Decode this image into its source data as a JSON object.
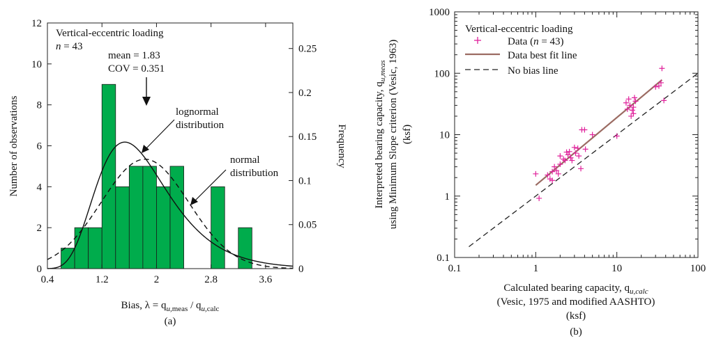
{
  "chart_data": [
    {
      "type": "bar",
      "panel_label": "(a)",
      "annotation": {
        "title": "Vertical-eccentric loading",
        "n_prefix": "n",
        "n_suffix": " = 43",
        "mean_text": "mean = 1.83",
        "cov_text": "COV = 0.351",
        "lognormal_line1": "lognormal",
        "lognormal_line2": "distribution",
        "normal_line1": "normal",
        "normal_line2": "distribution"
      },
      "xlabel": {
        "prefix": "Bias, λ = q",
        "sub1": "u,",
        "sub1b": "meas",
        "mid": " / q",
        "sub2": "u,",
        "sub2b": "calc"
      },
      "ylabel": "Number of observations",
      "ylabel_right": "Frequency",
      "x_range": [
        0.4,
        4.0
      ],
      "y_range": [
        0,
        12
      ],
      "y_right_range": [
        0,
        0.279
      ],
      "x_ticks": [
        0.4,
        1.2,
        2,
        2.8,
        3.6
      ],
      "x_tick_labels": [
        "0.4",
        "1.2",
        "2",
        "2.8",
        "3.6"
      ],
      "y_ticks": [
        0,
        2,
        4,
        6,
        8,
        10,
        12
      ],
      "y_right_ticks": [
        0,
        0.05,
        0.1,
        0.15,
        0.2,
        0.25
      ],
      "y_right_tick_labels": [
        "0",
        "0.05",
        "0.1",
        "0.15",
        "0.2",
        "0.25"
      ],
      "bin_width": 0.2,
      "bins": [
        {
          "x0": 0.6,
          "count": 1
        },
        {
          "x0": 0.8,
          "count": 2
        },
        {
          "x0": 1.0,
          "count": 2
        },
        {
          "x0": 1.2,
          "count": 9
        },
        {
          "x0": 1.4,
          "count": 4
        },
        {
          "x0": 1.6,
          "count": 5
        },
        {
          "x0": 1.8,
          "count": 5
        },
        {
          "x0": 2.0,
          "count": 4
        },
        {
          "x0": 2.2,
          "count": 5
        },
        {
          "x0": 2.8,
          "count": 4
        },
        {
          "x0": 3.2,
          "count": 2
        }
      ],
      "mean": 1.83,
      "cov": 0.351,
      "lognormal": {
        "mu": 0.5447,
        "sigma": 0.3413
      },
      "normal": {
        "mean": 1.83,
        "sd": 0.642
      },
      "bar_color": "#00ac4c",
      "n_total": 43
    },
    {
      "type": "scatter",
      "panel_label": "(b)",
      "scale": "log-log",
      "legend_title": "Vertical-eccentric loading",
      "legend": [
        {
          "text_prefix": "Data (",
          "italic": "n",
          "text_suffix": " = 43)",
          "kind": "marker",
          "color": "#e0219b"
        },
        {
          "text": "Data best fit line",
          "kind": "line",
          "color": "#9b6b62"
        },
        {
          "text": "No bias line",
          "kind": "dashed",
          "color": "#222222"
        }
      ],
      "xlabel": {
        "prefix": "Calculated bearing capacity, q",
        "sub": "u,calc"
      },
      "xlabel_line2": "(Vesic, 1975 and modified AASHTO)",
      "xlabel_line3": "(ksf)",
      "ylabel": {
        "line1_prefix": "Interpreted bearing capacity, q",
        "line1_sub": "u,meas",
        "line2": "using Minimum Slope criterion (Vesic, 1963)",
        "line3": "(ksf)"
      },
      "x_range": [
        0.1,
        100
      ],
      "y_range": [
        0.1,
        1000
      ],
      "x_ticks": [
        0.1,
        1,
        10,
        100
      ],
      "x_tick_labels": [
        "0.1",
        "1",
        "10",
        "100"
      ],
      "y_ticks": [
        0.1,
        1,
        10,
        100,
        1000
      ],
      "y_tick_labels": [
        "0.1",
        "1",
        "10",
        "100",
        "1000"
      ],
      "points": [
        [
          1.0,
          2.3
        ],
        [
          1.1,
          0.92
        ],
        [
          1.4,
          2.2
        ],
        [
          1.5,
          1.9
        ],
        [
          1.6,
          1.8
        ],
        [
          1.6,
          2.5
        ],
        [
          1.7,
          3.0
        ],
        [
          1.8,
          2.6
        ],
        [
          1.9,
          2.3
        ],
        [
          2.0,
          4.5
        ],
        [
          2.0,
          3.3
        ],
        [
          2.2,
          4.0
        ],
        [
          2.3,
          3.8
        ],
        [
          2.4,
          5.2
        ],
        [
          2.5,
          4.7
        ],
        [
          2.6,
          5.3
        ],
        [
          2.7,
          4.2
        ],
        [
          2.8,
          3.8
        ],
        [
          3.0,
          6.2
        ],
        [
          3.1,
          5.0
        ],
        [
          3.3,
          6.0
        ],
        [
          3.4,
          4.5
        ],
        [
          3.6,
          2.8
        ],
        [
          3.7,
          12.0
        ],
        [
          4.0,
          12.0
        ],
        [
          4.1,
          5.8
        ],
        [
          5.0,
          10.0
        ],
        [
          10.0,
          9.5
        ],
        [
          13.0,
          33.0
        ],
        [
          13.5,
          26.0
        ],
        [
          14.0,
          38.0
        ],
        [
          14.5,
          30.0
        ],
        [
          15.0,
          20.0
        ],
        [
          15.5,
          25.0
        ],
        [
          16.0,
          22.0
        ],
        [
          16.5,
          40.0
        ],
        [
          17.0,
          35.0
        ],
        [
          30.0,
          60.0
        ],
        [
          33.0,
          62.0
        ],
        [
          35.0,
          70.0
        ],
        [
          36.0,
          120.0
        ],
        [
          38.0,
          36.0
        ],
        [
          16.0,
          28.0
        ]
      ],
      "best_fit": {
        "x": [
          1.0,
          36.0
        ],
        "y": [
          1.5,
          78.0
        ]
      },
      "no_bias": {
        "x": [
          0.15,
          100
        ],
        "y": [
          0.15,
          100
        ]
      }
    }
  ]
}
